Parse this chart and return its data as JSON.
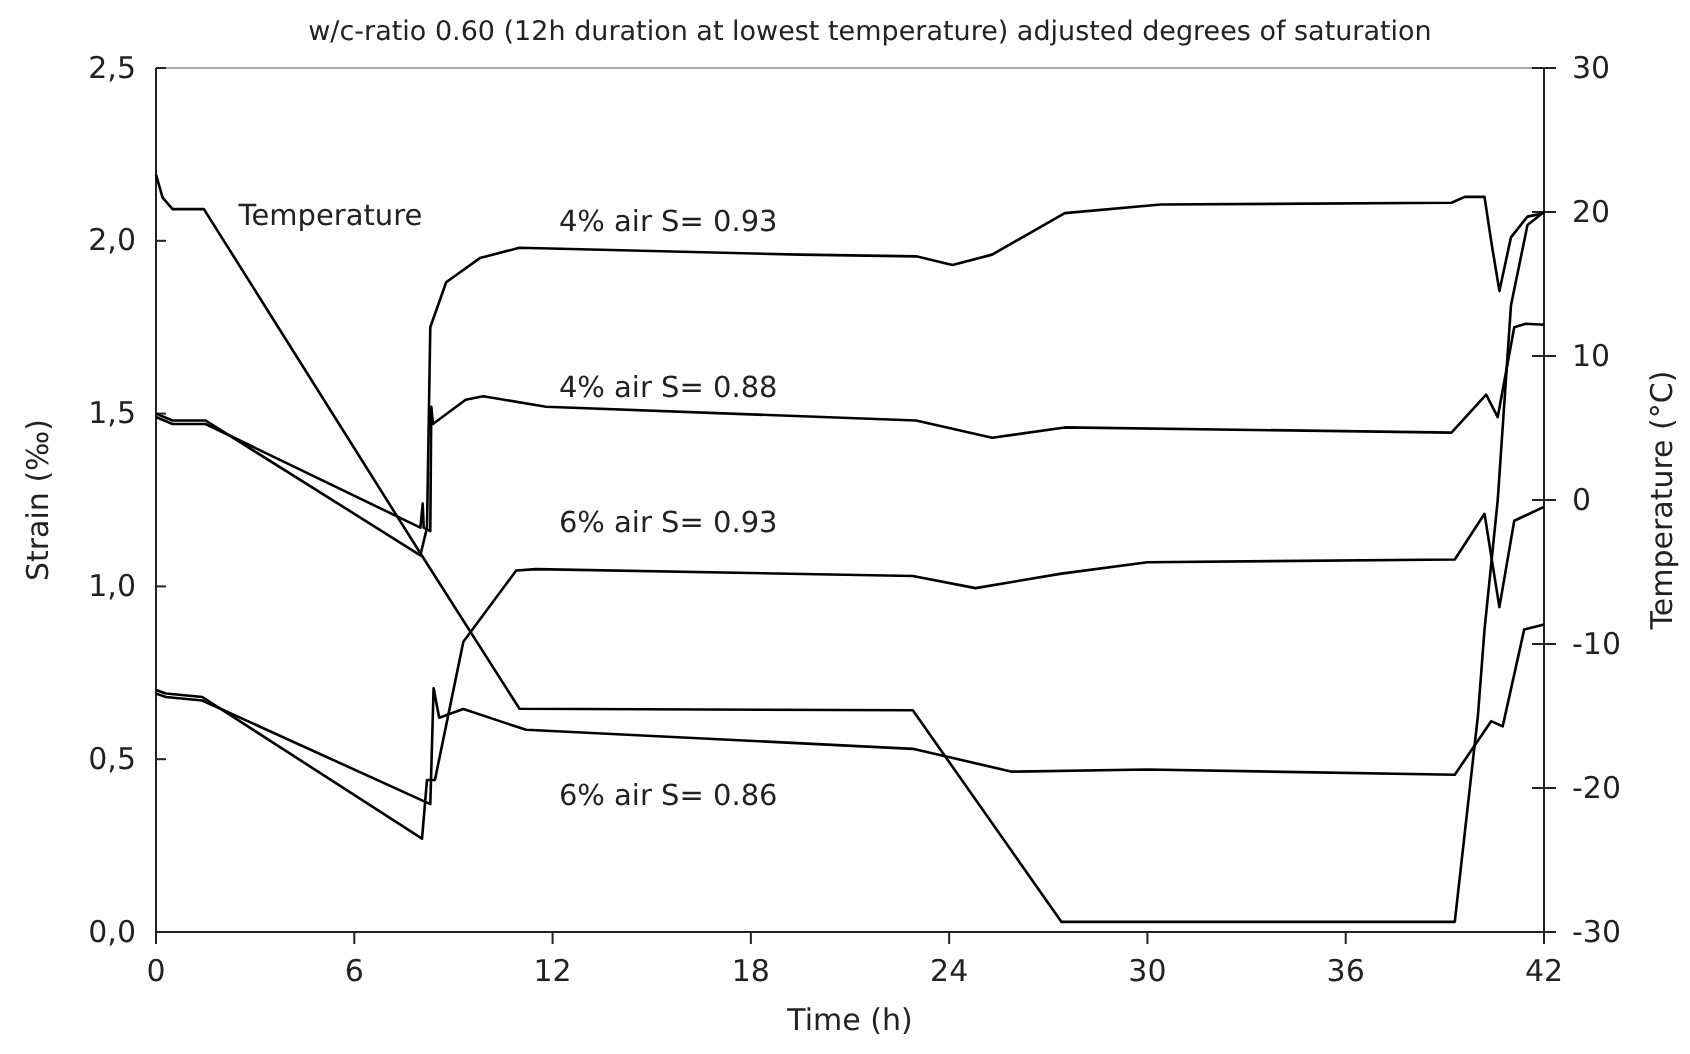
{
  "chart_data": {
    "type": "line",
    "title": "w/c-ratio 0.60 (12h duration at lowest temperature) adjusted degrees of saturation",
    "xlabel": "Time (h)",
    "ylabel": "Strain (‰)",
    "y2label": "Temperature (°C)",
    "xlim": [
      0,
      42
    ],
    "xticks": [
      0,
      6,
      12,
      18,
      24,
      30,
      36,
      42
    ],
    "ylim": [
      0,
      2.5
    ],
    "yticks": [
      {
        "value": 0,
        "label": "0,0"
      },
      {
        "value": 0.5,
        "label": "0,5"
      },
      {
        "value": 1,
        "label": "1,0"
      },
      {
        "value": 1.5,
        "label": "1,5"
      },
      {
        "value": 2,
        "label": "2,0"
      },
      {
        "value": 2.5,
        "label": "2,5"
      }
    ],
    "y2lim": [
      -30,
      30
    ],
    "y2ticks": [
      -30,
      -20,
      -10,
      0,
      10,
      20,
      30
    ],
    "grid": false,
    "marker": "none",
    "line_style": "solid",
    "legend": false,
    "series": [
      {
        "name": "Temperature",
        "color": "#000000",
        "axis": "y2",
        "x": [
          0,
          0.2,
          0.5,
          1.45,
          8.0,
          11.0,
          22.9,
          27.4,
          39.3,
          40.0,
          40.2,
          40.6,
          41.0,
          41.5,
          42
        ],
        "values": [
          22.6,
          21,
          20.2,
          20.2,
          -3.7,
          -14.5,
          -14.6,
          -29.3,
          -29.3,
          -15,
          -9,
          0,
          13.5,
          19.1,
          20
        ]
      },
      {
        "name": "4% air S= 0.93",
        "color": "#000000",
        "x": [
          0,
          0.5,
          1.5,
          8.0,
          8.2,
          8.3,
          8.78,
          9.8,
          11.0,
          19.5,
          23.0,
          24.1,
          25.3,
          27.5,
          30.4,
          39.2,
          39.6,
          40.2,
          40.4,
          40.65,
          41.0,
          41.5,
          42
        ],
        "values": [
          1.5,
          1.48,
          1.48,
          1.09,
          1.17,
          1.75,
          1.88,
          1.95,
          1.98,
          1.96,
          1.955,
          1.93,
          1.96,
          2.08,
          2.105,
          2.11,
          2.127,
          2.127,
          2.0,
          1.855,
          2.01,
          2.07,
          2.08
        ]
      },
      {
        "name": "4% air S= 0.88",
        "color": "#000000",
        "x": [
          0,
          0.5,
          1.5,
          8.0,
          8.07,
          8.1,
          8.3,
          8.33,
          8.38,
          9.37,
          9.9,
          11.8,
          23.0,
          25.3,
          27.5,
          39.2,
          40.25,
          40.6,
          41.1,
          41.45,
          42
        ],
        "values": [
          1.49,
          1.47,
          1.47,
          1.17,
          1.24,
          1.17,
          1.16,
          1.52,
          1.47,
          1.54,
          1.55,
          1.52,
          1.48,
          1.43,
          1.46,
          1.445,
          1.555,
          1.49,
          1.75,
          1.76,
          1.757
        ]
      },
      {
        "name": "6% air S= 0.93",
        "color": "#000000",
        "x": [
          0,
          0.3,
          1.4,
          8.05,
          8.2,
          8.44,
          9.3,
          10.9,
          11.5,
          22.9,
          24.8,
          27.4,
          30.0,
          39.3,
          40.2,
          40.65,
          41.1,
          42
        ],
        "values": [
          0.7,
          0.69,
          0.68,
          0.27,
          0.44,
          0.44,
          0.84,
          1.046,
          1.05,
          1.03,
          0.995,
          1.037,
          1.07,
          1.078,
          1.21,
          0.94,
          1.19,
          1.23
        ]
      },
      {
        "name": "6% air S= 0.86",
        "color": "#000000",
        "x": [
          0,
          0.3,
          1.4,
          8.3,
          8.4,
          8.57,
          9.3,
          11.2,
          22.9,
          25.9,
          30.0,
          39.3,
          40.4,
          40.75,
          41.4,
          42
        ],
        "values": [
          0.69,
          0.68,
          0.67,
          0.37,
          0.705,
          0.62,
          0.645,
          0.585,
          0.53,
          0.464,
          0.47,
          0.455,
          0.61,
          0.595,
          0.875,
          0.89
        ]
      }
    ]
  }
}
